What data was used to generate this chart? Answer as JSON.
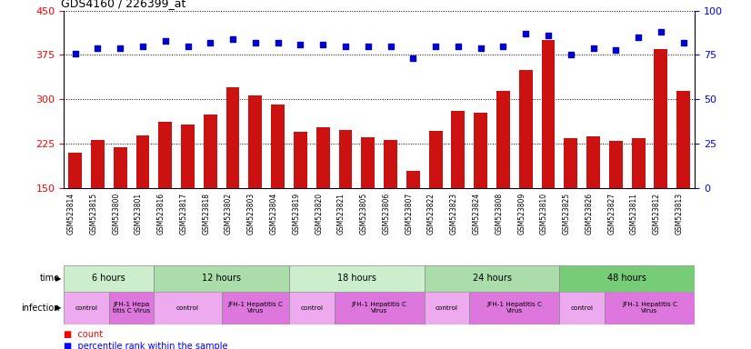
{
  "title": "GDS4160 / 226399_at",
  "samples": [
    "GSM523814",
    "GSM523815",
    "GSM523800",
    "GSM523801",
    "GSM523816",
    "GSM523817",
    "GSM523818",
    "GSM523802",
    "GSM523803",
    "GSM523804",
    "GSM523819",
    "GSM523820",
    "GSM523821",
    "GSM523805",
    "GSM523806",
    "GSM523807",
    "GSM523822",
    "GSM523823",
    "GSM523824",
    "GSM523808",
    "GSM523809",
    "GSM523810",
    "GSM523825",
    "GSM523826",
    "GSM523827",
    "GSM523811",
    "GSM523812",
    "GSM523813"
  ],
  "counts": [
    210,
    232,
    220,
    240,
    262,
    258,
    275,
    320,
    307,
    292,
    245,
    253,
    248,
    237,
    232,
    180,
    247,
    280,
    277,
    315,
    350,
    400,
    235,
    238,
    230,
    235,
    385,
    315
  ],
  "percentile_ranks": [
    76,
    79,
    79,
    80,
    83,
    80,
    82,
    84,
    82,
    82,
    81,
    81,
    80,
    80,
    80,
    73,
    80,
    80,
    79,
    80,
    87,
    86,
    75,
    79,
    78,
    85,
    88,
    82
  ],
  "ylim_left": [
    150,
    450
  ],
  "ylim_right": [
    0,
    100
  ],
  "yticks_left": [
    150,
    225,
    300,
    375,
    450
  ],
  "yticks_right": [
    0,
    25,
    50,
    75,
    100
  ],
  "time_groups": [
    {
      "label": "6 hours",
      "start": 0,
      "end": 4,
      "color": "#cceecc"
    },
    {
      "label": "12 hours",
      "start": 4,
      "end": 10,
      "color": "#aaddaa"
    },
    {
      "label": "18 hours",
      "start": 10,
      "end": 16,
      "color": "#cceecc"
    },
    {
      "label": "24 hours",
      "start": 16,
      "end": 22,
      "color": "#aaddaa"
    },
    {
      "label": "48 hours",
      "start": 22,
      "end": 28,
      "color": "#77cc77"
    }
  ],
  "infection_groups": [
    {
      "label": "control",
      "start": 0,
      "end": 2,
      "color": "#eeaaee"
    },
    {
      "label": "JFH-1 Hepa\ntitis C Virus",
      "start": 2,
      "end": 4,
      "color": "#dd77dd"
    },
    {
      "label": "control",
      "start": 4,
      "end": 7,
      "color": "#eeaaee"
    },
    {
      "label": "JFH-1 Hepatitis C\nVirus",
      "start": 7,
      "end": 10,
      "color": "#dd77dd"
    },
    {
      "label": "control",
      "start": 10,
      "end": 12,
      "color": "#eeaaee"
    },
    {
      "label": "JFH-1 Hepatitis C\nVirus",
      "start": 12,
      "end": 16,
      "color": "#dd77dd"
    },
    {
      "label": "control",
      "start": 16,
      "end": 18,
      "color": "#eeaaee"
    },
    {
      "label": "JFH-1 Hepatitis C\nVirus",
      "start": 18,
      "end": 22,
      "color": "#dd77dd"
    },
    {
      "label": "control",
      "start": 22,
      "end": 24,
      "color": "#eeaaee"
    },
    {
      "label": "JFH-1 Hepatitis C\nVirus",
      "start": 24,
      "end": 28,
      "color": "#dd77dd"
    }
  ],
  "bar_color": "#cc1111",
  "dot_color": "#0000cc",
  "background_color": "#ffffff"
}
